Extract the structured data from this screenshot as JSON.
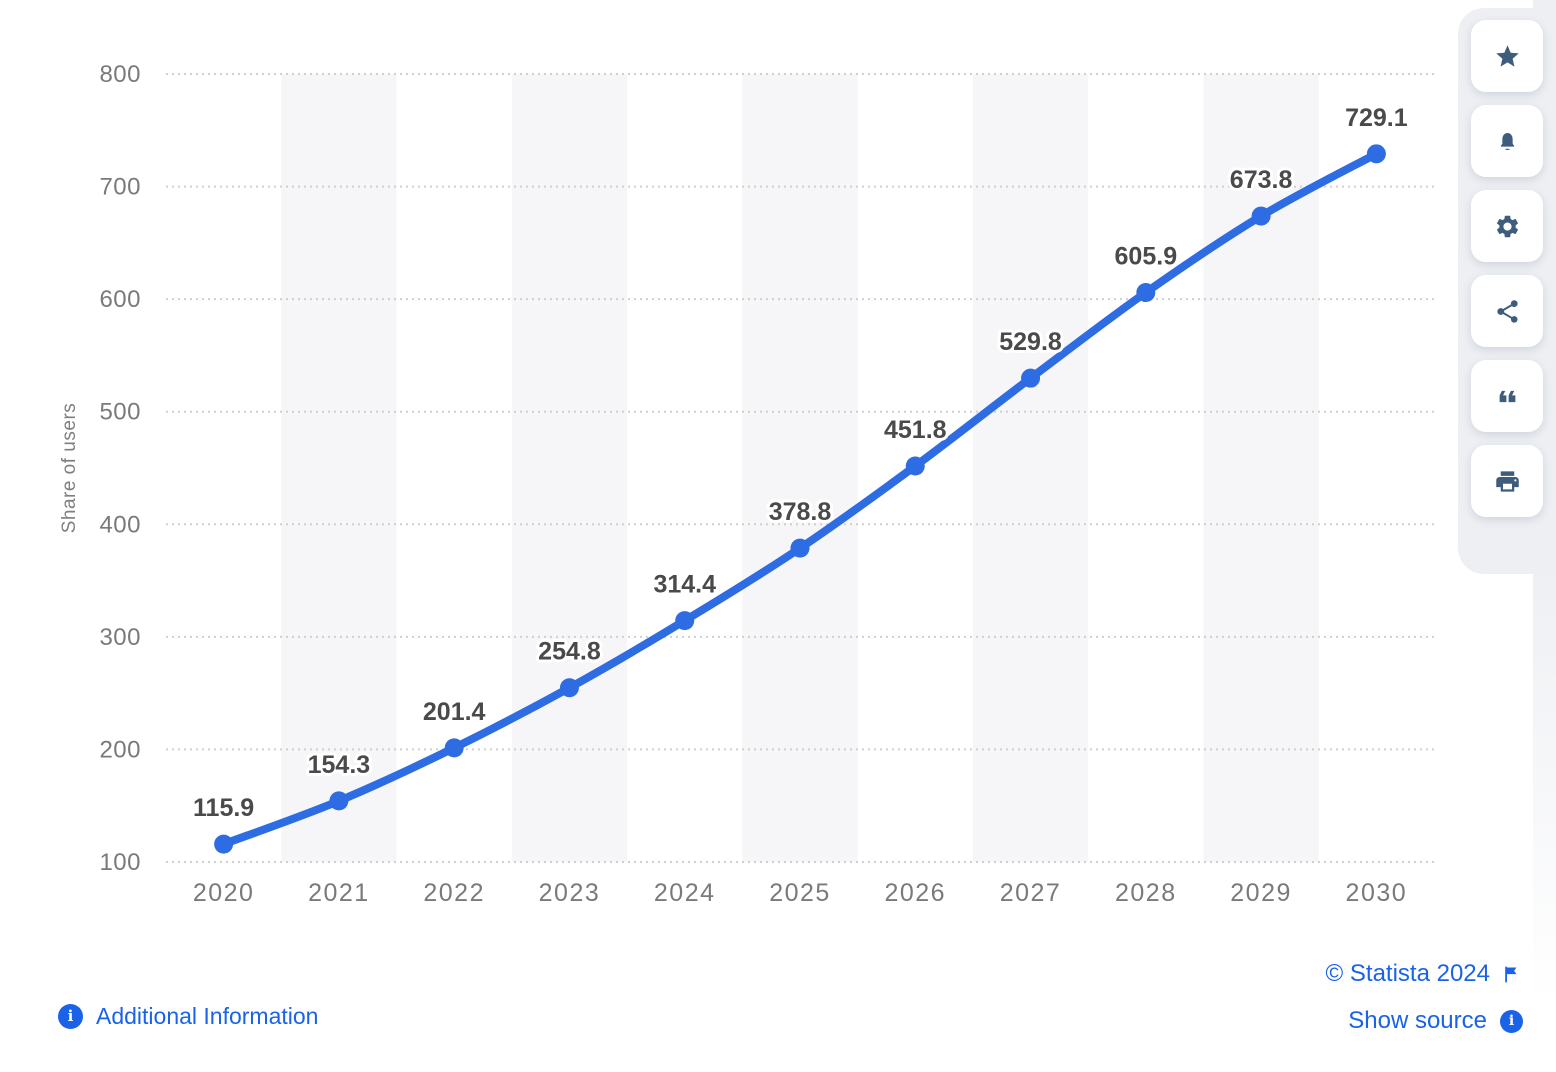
{
  "colors": {
    "line_blue": "#2d6ce2",
    "link_blue": "#1a63e8",
    "icon_slate": "#3e5c7b",
    "band_gray": "#f6f6f8",
    "grid_gray": "#cfcfcf",
    "tick_gray": "#7a7a7a",
    "data_label_gray": "#4a4a4a"
  },
  "icons": {
    "info_glyph": "i"
  },
  "chart_data": {
    "type": "line",
    "title": "",
    "xlabel": "",
    "ylabel": "Share of users",
    "x": [
      "2020",
      "2021",
      "2022",
      "2023",
      "2024",
      "2025",
      "2026",
      "2027",
      "2028",
      "2029",
      "2030"
    ],
    "series": [
      {
        "name": "Share of users",
        "values": [
          115.9,
          154.3,
          201.4,
          254.8,
          314.4,
          378.8,
          451.8,
          529.8,
          605.9,
          673.8,
          729.1
        ]
      }
    ],
    "point_labels": [
      "115.9",
      "154.3",
      "201.4",
      "254.8",
      "314.4",
      "378.8",
      "451.8",
      "529.8",
      "605.9",
      "673.8",
      "729.1"
    ],
    "ylim": [
      100,
      800
    ],
    "yticks": [
      100,
      200,
      300,
      400,
      500,
      600,
      700,
      800
    ],
    "grid": "horizontal-dotted",
    "banded_columns": "alternate-odd",
    "legend": "none",
    "line_smooth": true
  },
  "toolbar": {
    "items": [
      {
        "name": "favorite",
        "icon": "star-icon"
      },
      {
        "name": "notifications",
        "icon": "bell-icon"
      },
      {
        "name": "settings",
        "icon": "gear-icon"
      },
      {
        "name": "share",
        "icon": "share-icon"
      },
      {
        "name": "cite",
        "icon": "quote-icon"
      },
      {
        "name": "print",
        "icon": "printer-icon"
      }
    ]
  },
  "footer": {
    "additional_information": "Additional Information",
    "copyright": "© Statista 2024",
    "show_source": "Show source"
  }
}
